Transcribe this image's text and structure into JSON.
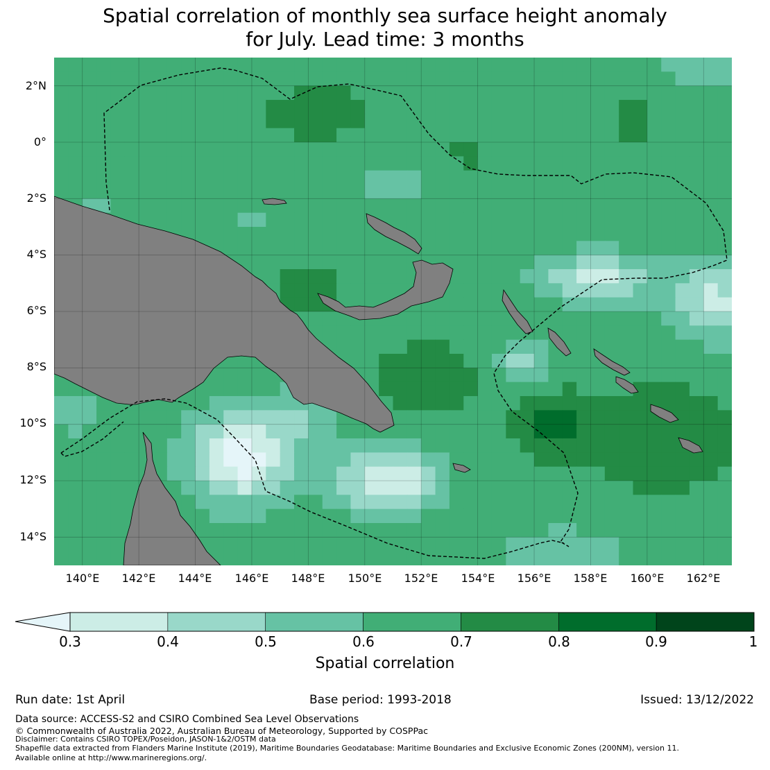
{
  "title_line1": "Spatial correlation of monthly sea surface height anomaly",
  "title_line2": "for July. Lead time: 3 months",
  "map": {
    "lon_range": [
      139,
      163
    ],
    "lat_range": [
      -15,
      3
    ],
    "lat_ticks": [
      "2°N",
      "0°",
      "2°S",
      "4°S",
      "6°S",
      "8°S",
      "10°S",
      "12°S",
      "14°S"
    ],
    "lon_ticks": [
      "140°E",
      "142°E",
      "144°E",
      "146°E",
      "148°E",
      "150°E",
      "152°E",
      "154°E",
      "156°E",
      "158°E",
      "160°E",
      "162°E"
    ],
    "land_color": "#808080",
    "grid": true
  },
  "colorbar": {
    "label": "Spatial correlation",
    "ticks": [
      "0.3",
      "0.4",
      "0.5",
      "0.6",
      "0.7",
      "0.8",
      "0.9",
      "1"
    ],
    "bins": [
      {
        "min": 0.3,
        "max": 0.4,
        "color": "#ccede6"
      },
      {
        "min": 0.4,
        "max": 0.5,
        "color": "#99d8c9"
      },
      {
        "min": 0.5,
        "max": 0.6,
        "color": "#66c2a4"
      },
      {
        "min": 0.6,
        "max": 0.7,
        "color": "#41ae76"
      },
      {
        "min": 0.7,
        "max": 0.8,
        "color": "#238b45"
      },
      {
        "min": 0.8,
        "max": 0.9,
        "color": "#006d2c"
      },
      {
        "min": 0.9,
        "max": 1.0,
        "color": "#00441b"
      }
    ],
    "under_color": "#e5f5f9"
  },
  "meta": {
    "run_date": "Run date: 1st April",
    "base_period": "Base period: 1993-2018",
    "issued": "Issued: 13/12/2022"
  },
  "footer": {
    "data_source": "Data source: ACCESS-S2 and CSIRO Combined Sea Level Observations",
    "copyright": "© Commonwealth of Australia 2022, Australian Bureau of Meteorology, Supported by COSPPac",
    "disclaimer": "Disclaimer: Contains CSIRO TOPEX/Poseidon, JASON-1&2/OSTM data",
    "shapefile": "Shapefile data extracted from Flanders Marine Institute (2019), Maritime Boundaries Geodatabase: Maritime Boundaries and Exclusive Economic Zones (200NM), version 11.",
    "available": "Available online at http://www.marineregions.org/."
  }
}
